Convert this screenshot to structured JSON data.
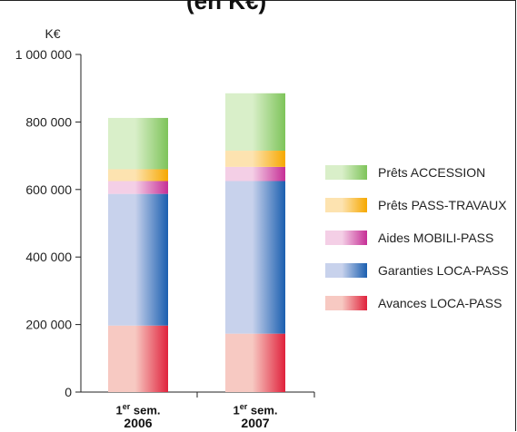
{
  "title_fragment": "(en K€)",
  "chart_data": {
    "type": "bar",
    "stacked": true,
    "ylabel": "K€",
    "ylim": [
      0,
      1000000
    ],
    "yticks": [
      "0",
      "200 000",
      "400 000",
      "600 000",
      "800 000",
      "1 000 000"
    ],
    "categories": [
      {
        "line1_prefix": "1",
        "line1_sup": "er",
        "line1_suffix": " sem.",
        "line2": "2006"
      },
      {
        "line1_prefix": "1",
        "line1_sup": "er",
        "line1_suffix": " sem.",
        "line2": "2007"
      }
    ],
    "series": [
      {
        "name": "Avances LOCA-PASS",
        "values": [
          197000,
          173000
        ],
        "color_light": "#f7c9c2",
        "color_dark": "#e0223c"
      },
      {
        "name": "Garanties LOCA-PASS",
        "values": [
          390000,
          452000
        ],
        "color_light": "#c8d2ec",
        "color_dark": "#1b5fb0"
      },
      {
        "name": "Aides MOBILI-PASS",
        "values": [
          38000,
          42000
        ],
        "color_light": "#f4cfe6",
        "color_dark": "#c62f96"
      },
      {
        "name": "Prêts PASS-TRAVAUX",
        "values": [
          35000,
          48000
        ],
        "color_light": "#fde3b0",
        "color_dark": "#f6a800"
      },
      {
        "name": "Prêts ACCESSION",
        "values": [
          152000,
          170000
        ],
        "color_light": "#d9efc9",
        "color_dark": "#7ec45a"
      }
    ],
    "legend_position": "right",
    "legend_order": [
      4,
      3,
      2,
      1,
      0
    ],
    "grid": false
  }
}
